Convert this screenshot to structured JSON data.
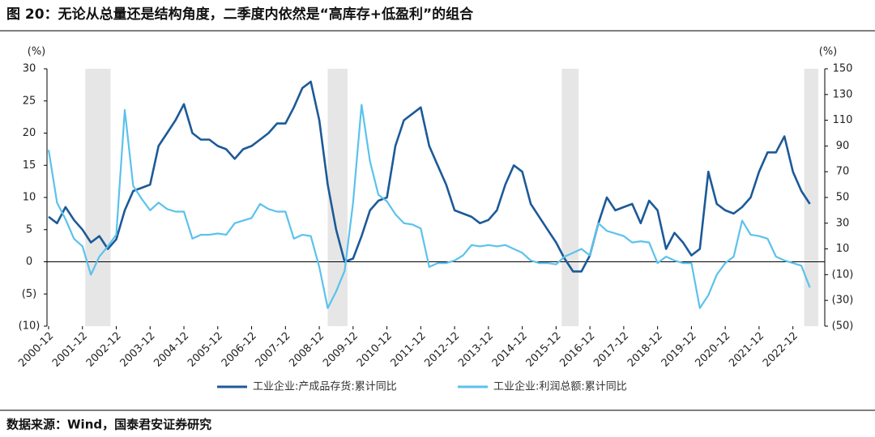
{
  "chart_data": {
    "type": "line",
    "title": "图 20：无论从总量还是结构角度，二季度内依然是“高库存+低盈利”的组合",
    "source": "数据来源：Wind，国泰君安证券研究",
    "y_label": "(%)",
    "y2_label": "(%)",
    "x": [
      "2000-12",
      "2001-03",
      "2001-06",
      "2001-09",
      "2001-12",
      "2002-03",
      "2002-06",
      "2002-09",
      "2002-12",
      "2003-03",
      "2003-06",
      "2003-09",
      "2003-12",
      "2004-03",
      "2004-06",
      "2004-09",
      "2004-12",
      "2005-03",
      "2005-06",
      "2005-09",
      "2005-12",
      "2006-03",
      "2006-06",
      "2006-09",
      "2006-12",
      "2007-03",
      "2007-06",
      "2007-09",
      "2007-12",
      "2008-03",
      "2008-06",
      "2008-09",
      "2008-12",
      "2009-03",
      "2009-06",
      "2009-09",
      "2009-12",
      "2010-03",
      "2010-06",
      "2010-09",
      "2010-12",
      "2011-03",
      "2011-06",
      "2011-09",
      "2011-12",
      "2012-03",
      "2012-06",
      "2012-09",
      "2012-12",
      "2013-03",
      "2013-06",
      "2013-09",
      "2013-12",
      "2014-03",
      "2014-06",
      "2014-09",
      "2014-12",
      "2015-03",
      "2015-06",
      "2015-09",
      "2015-12",
      "2016-03",
      "2016-06",
      "2016-09",
      "2016-12",
      "2017-03",
      "2017-06",
      "2017-09",
      "2017-12",
      "2018-03",
      "2018-06",
      "2018-09",
      "2018-12",
      "2019-03",
      "2019-06",
      "2019-09",
      "2019-12",
      "2020-03",
      "2020-06",
      "2020-09",
      "2020-12",
      "2021-03",
      "2021-06",
      "2021-09",
      "2021-12",
      "2022-03",
      "2022-06",
      "2022-09",
      "2022-12",
      "2023-03",
      "2023-06"
    ],
    "xlim": [
      "2000-12",
      "2023-09"
    ],
    "xticks": [
      "2000-12",
      "2001-12",
      "2002-12",
      "2003-12",
      "2004-12",
      "2005-12",
      "2006-12",
      "2007-12",
      "2008-12",
      "2009-12",
      "2010-12",
      "2011-12",
      "2012-12",
      "2013-12",
      "2014-12",
      "2015-12",
      "2016-12",
      "2017-12",
      "2018-12",
      "2019-12",
      "2020-12",
      "2021-12",
      "2022-12"
    ],
    "shaded": [
      [
        "2002-01",
        "2002-10"
      ],
      [
        "2009-03",
        "2009-10"
      ],
      [
        "2016-02",
        "2016-08"
      ],
      [
        "2023-04",
        "2023-09"
      ]
    ],
    "shade_color": "#e6e6e6",
    "ylim": [
      -10,
      30
    ],
    "yticks": [
      30,
      25,
      20,
      15,
      10,
      5,
      0,
      {
        "value": -5,
        "label": "(5)"
      },
      {
        "value": -10,
        "label": "(10)"
      }
    ],
    "y2lim": [
      -50,
      150
    ],
    "y2ticks": [
      150,
      130,
      110,
      90,
      70,
      50,
      30,
      10,
      {
        "value": -10,
        "label": "(10)"
      },
      {
        "value": -30,
        "label": "(30)"
      },
      {
        "value": -50,
        "label": "(50)"
      }
    ],
    "negative_label_color": "#e00000",
    "series": [
      {
        "name": "工业企业:产成品存货:累计同比",
        "color": "#1c5a98",
        "axis": "y",
        "values": [
          7,
          6,
          8.5,
          6.5,
          5,
          3,
          4,
          2,
          3.5,
          8,
          11,
          11.5,
          12,
          18,
          20,
          22,
          24.5,
          20,
          19,
          19,
          18,
          17.5,
          16,
          17.5,
          18,
          19,
          20,
          21.5,
          21.5,
          24,
          27,
          28,
          22,
          12,
          5,
          0,
          0.5,
          4,
          8,
          9.5,
          10,
          18,
          22,
          23,
          24,
          18,
          15,
          12,
          8,
          7.5,
          7,
          6,
          6.5,
          8,
          12,
          15,
          14,
          9,
          7,
          5,
          3,
          0.5,
          -1.5,
          -1.5,
          1,
          6,
          10,
          8,
          8.5,
          9,
          6,
          9.5,
          8,
          2,
          4.5,
          3,
          1,
          2,
          14,
          9,
          8,
          7.5,
          8.5,
          10,
          14,
          17,
          17,
          19.5,
          14,
          11,
          9
        ]
      },
      {
        "name": "工业企业:利润总额:累计同比",
        "color": "#5bc2ec",
        "axis": "y2",
        "values": [
          87,
          46,
          33,
          18,
          12,
          -10,
          4,
          12,
          21,
          118,
          59,
          49,
          40,
          46,
          41,
          39,
          39,
          18,
          21,
          21,
          22,
          21,
          30,
          32,
          34,
          45,
          41,
          39,
          39,
          18,
          21,
          20,
          -4,
          -36,
          -23,
          -7,
          46,
          122,
          78,
          52,
          47,
          37,
          30,
          29,
          26,
          -4,
          -1,
          -1,
          1,
          5,
          13,
          12,
          13,
          12,
          13,
          10,
          7,
          1,
          -1,
          -1,
          -2,
          4,
          7,
          10,
          5,
          30,
          24,
          22,
          20,
          15,
          16,
          15,
          -1,
          4,
          1,
          -1,
          -1,
          -36,
          -26,
          -10,
          -1,
          4,
          32,
          21,
          20,
          18,
          4,
          1,
          -1,
          -3,
          -20
        ]
      }
    ]
  }
}
